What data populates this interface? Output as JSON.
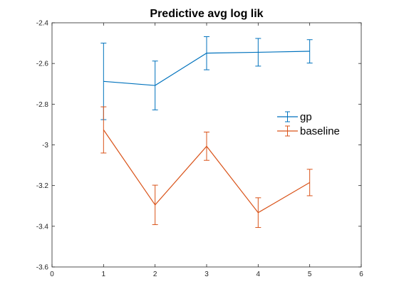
{
  "chart_data": {
    "type": "line",
    "title": "Predictive avg log lik",
    "xlabel": "",
    "ylabel": "",
    "xlim": [
      0,
      6
    ],
    "ylim": [
      -3.6,
      -2.4
    ],
    "x_ticks": [
      0,
      1,
      2,
      3,
      4,
      5,
      6
    ],
    "y_ticks": [
      -3.6,
      -3.4,
      -3.2,
      -3.0,
      -2.8,
      -2.6,
      -2.4
    ],
    "x_tick_labels": [
      "0",
      "1",
      "2",
      "3",
      "4",
      "5",
      "6"
    ],
    "y_tick_labels": [
      "-3.6",
      "-3.4",
      "-3.2",
      "-3",
      "-2.8",
      "-2.6",
      "-2.4"
    ],
    "grid": false,
    "legend_position": "right",
    "series": [
      {
        "name": "gp",
        "color": "#0072BD",
        "x": [
          1,
          2,
          3,
          4,
          5
        ],
        "y": [
          -2.688,
          -2.708,
          -2.549,
          -2.545,
          -2.54
        ],
        "error_low": [
          -2.876,
          -2.828,
          -2.631,
          -2.613,
          -2.598
        ],
        "error_high": [
          -2.5,
          -2.588,
          -2.468,
          -2.477,
          -2.483
        ]
      },
      {
        "name": "baseline",
        "color": "#D95319",
        "x": [
          1,
          2,
          3,
          4,
          5
        ],
        "y": [
          -2.926,
          -3.295,
          -3.007,
          -3.333,
          -3.185
        ],
        "error_low": [
          -3.04,
          -3.392,
          -3.076,
          -3.406,
          -3.25
        ],
        "error_high": [
          -2.813,
          -3.198,
          -2.937,
          -3.26,
          -3.12
        ]
      }
    ]
  }
}
